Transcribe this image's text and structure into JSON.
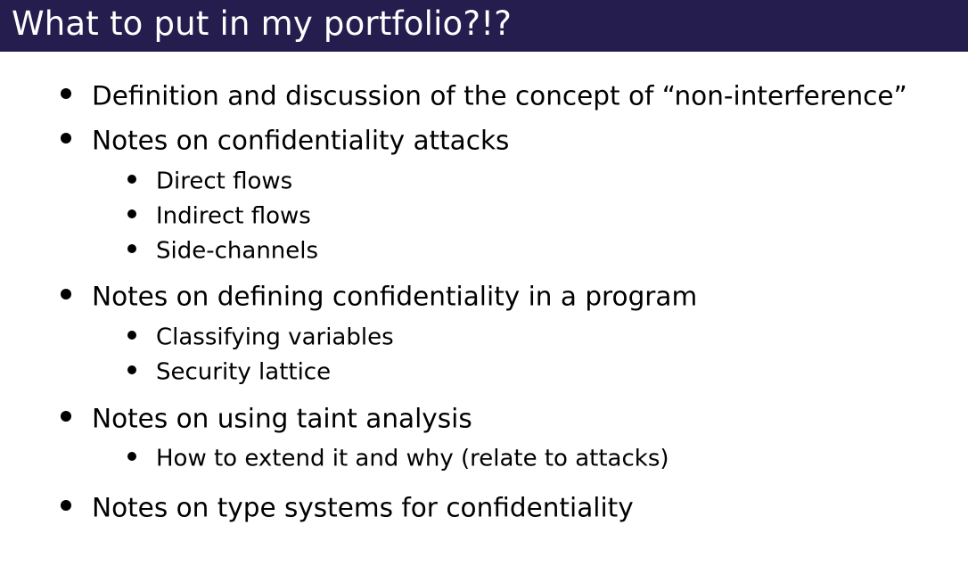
{
  "header": {
    "title": "What to put in my portfolio?!?",
    "background_color": "#261d4f",
    "title_color": "#ffffff"
  },
  "items": [
    {
      "text": "Definition and discussion of the concept of “non-interference”",
      "level": 1
    },
    {
      "text": "Notes on confidentiality attacks",
      "level": 1
    },
    {
      "text": "Direct flows",
      "level": 2
    },
    {
      "text": "Indirect flows",
      "level": 2
    },
    {
      "text": "Side-channels",
      "level": 2
    },
    {
      "text": "Notes on defining confidentiality in a program",
      "level": 1
    },
    {
      "text": "Classifying variables",
      "level": 2
    },
    {
      "text": "Security lattice",
      "level": 2
    },
    {
      "text": "Notes on using taint analysis",
      "level": 1
    },
    {
      "text": "How to extend it and why (relate to attacks)",
      "level": 2
    },
    {
      "text": "Notes on type systems for confidentiality",
      "level": 1
    }
  ]
}
